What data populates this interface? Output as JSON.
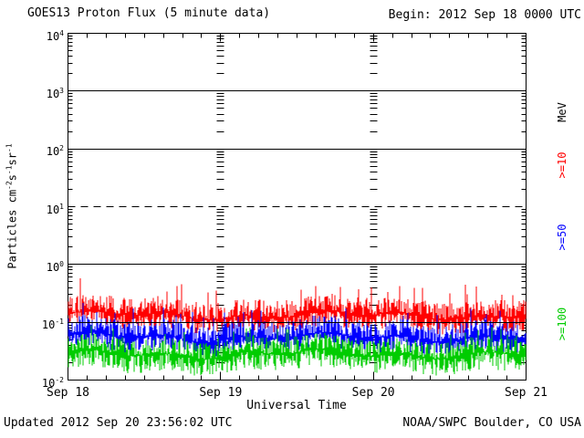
{
  "header": {
    "title": "GOES13 Proton Flux (5 minute data)",
    "begin_label": "Begin: 2012 Sep 18 0000 UTC"
  },
  "footer": {
    "updated": "Updated 2012 Sep 20 23:56:02 UTC",
    "attribution": "NOAA/SWPC Boulder, CO USA"
  },
  "chart_data": {
    "type": "line",
    "title": "GOES13 Proton Flux (5 minute data)",
    "subtitle": "Begin: 2012 Sep 18 0000 UTC",
    "xlabel": "Universal Time",
    "ylabel": "Particles cm-2s-1sr-1",
    "ylabel_segments": [
      {
        "t": "Particles cm"
      },
      {
        "s": "-2"
      },
      {
        "t": "s"
      },
      {
        "s": "-1"
      },
      {
        "t": "sr"
      },
      {
        "s": "-1"
      }
    ],
    "x_tick_labels": [
      "Sep 18",
      "Sep 19",
      "Sep 20",
      "Sep 21"
    ],
    "x_span_days": 3,
    "x_minor_ticks_per_day": 8,
    "y_scale": "log",
    "ylim": [
      0.01,
      10000
    ],
    "y_tick_exponents": [
      4,
      3,
      2,
      1,
      0,
      -1,
      -2
    ],
    "grid": {
      "solid_hlines": [
        1000,
        100,
        1,
        0.1
      ],
      "dashed_hlines": [
        10
      ],
      "vertical_dashed_day_marks": [
        "Sep 19",
        "Sep 20"
      ]
    },
    "unit_axis_label": "MeV",
    "legend_position": "right-rotated",
    "legend_header": {
      "label": "MeV",
      "color": "#000000"
    },
    "series": [
      {
        "name": "Protons >=10 MeV",
        "legend_label": ">=10",
        "color": "#FF0000",
        "summary": {
          "median_flux": 0.13,
          "typical_range": [
            0.08,
            0.25
          ],
          "peak_flux": 0.45
        },
        "noise_model": {
          "seed": 101,
          "median_log10": -0.88,
          "down_log10": 0.26,
          "up_log10": 0.3,
          "spike_prob": 0.05,
          "spike_log10": 0.58
        }
      },
      {
        "name": "Protons >=50 MeV",
        "legend_label": ">=50",
        "color": "#0000FF",
        "summary": {
          "median_flux": 0.055,
          "typical_range": [
            0.032,
            0.1
          ],
          "peak_flux": 0.2
        },
        "noise_model": {
          "seed": 202,
          "median_log10": -1.26,
          "down_log10": 0.26,
          "up_log10": 0.3,
          "spike_prob": 0.045,
          "spike_log10": 0.52
        }
      },
      {
        "name": "Protons >=100 MeV",
        "legend_label": ">=100",
        "color": "#00CC00",
        "summary": {
          "median_flux": 0.028,
          "typical_range": [
            0.014,
            0.05
          ],
          "peak_flux": 0.09
        },
        "noise_model": {
          "seed": 303,
          "median_log10": -1.55,
          "down_log10": 0.3,
          "up_log10": 0.28,
          "spike_prob": 0.04,
          "spike_log10": 0.46
        }
      }
    ]
  }
}
